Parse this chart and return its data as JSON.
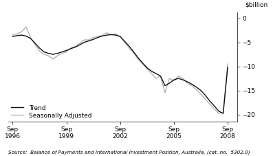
{
  "ylabel_right": "$billion",
  "source_text": "Source:  Balance of Payments and International Investment Position, Australia, (cat. no.  5302.0)",
  "xlim_start": 1996.5,
  "xlim_end": 2009.3,
  "ylim_bottom": -21.5,
  "ylim_top": 1.2,
  "yticks": [
    0,
    -5,
    -10,
    -15,
    -20
  ],
  "xtick_positions": [
    1996.75,
    1999.75,
    2002.75,
    2005.75,
    2008.75
  ],
  "xtick_labels": [
    "Sep\n1996",
    "Sep\n1999",
    "Sep\n2002",
    "Sep\n2005",
    "Sep\n2008"
  ],
  "trend_color": "#111111",
  "seasonal_color": "#aaaaaa",
  "trend_linewidth": 1.0,
  "seasonal_linewidth": 0.9,
  "legend_trend": "Trend",
  "legend_seasonal": "Seasonally Adjusted",
  "trend_data": [
    [
      1996.75,
      -3.8
    ],
    [
      1997.0,
      -3.6
    ],
    [
      1997.25,
      -3.5
    ],
    [
      1997.5,
      -3.7
    ],
    [
      1997.75,
      -4.2
    ],
    [
      1998.0,
      -5.2
    ],
    [
      1998.25,
      -6.2
    ],
    [
      1998.5,
      -7.0
    ],
    [
      1998.75,
      -7.3
    ],
    [
      1999.0,
      -7.5
    ],
    [
      1999.25,
      -7.3
    ],
    [
      1999.5,
      -7.0
    ],
    [
      1999.75,
      -6.7
    ],
    [
      2000.0,
      -6.3
    ],
    [
      2000.25,
      -6.0
    ],
    [
      2000.5,
      -5.5
    ],
    [
      2000.75,
      -5.0
    ],
    [
      2001.0,
      -4.7
    ],
    [
      2001.25,
      -4.4
    ],
    [
      2001.5,
      -4.0
    ],
    [
      2001.75,
      -3.7
    ],
    [
      2002.0,
      -3.5
    ],
    [
      2002.25,
      -3.4
    ],
    [
      2002.5,
      -3.5
    ],
    [
      2002.75,
      -3.8
    ],
    [
      2003.0,
      -4.8
    ],
    [
      2003.25,
      -5.8
    ],
    [
      2003.5,
      -7.0
    ],
    [
      2003.75,
      -8.2
    ],
    [
      2004.0,
      -9.3
    ],
    [
      2004.25,
      -10.3
    ],
    [
      2004.5,
      -11.0
    ],
    [
      2004.75,
      -11.5
    ],
    [
      2005.0,
      -12.0
    ],
    [
      2005.25,
      -14.0
    ],
    [
      2005.5,
      -13.5
    ],
    [
      2005.75,
      -12.8
    ],
    [
      2006.0,
      -12.5
    ],
    [
      2006.25,
      -12.8
    ],
    [
      2006.5,
      -13.2
    ],
    [
      2006.75,
      -13.7
    ],
    [
      2007.0,
      -14.3
    ],
    [
      2007.25,
      -15.0
    ],
    [
      2007.5,
      -16.0
    ],
    [
      2007.75,
      -17.2
    ],
    [
      2008.0,
      -18.2
    ],
    [
      2008.25,
      -19.3
    ],
    [
      2008.5,
      -19.8
    ],
    [
      2008.75,
      -10.2
    ]
  ],
  "seasonal_data": [
    [
      1996.75,
      -3.5
    ],
    [
      1997.0,
      -3.2
    ],
    [
      1997.25,
      -2.8
    ],
    [
      1997.5,
      -1.8
    ],
    [
      1997.75,
      -4.0
    ],
    [
      1998.0,
      -5.5
    ],
    [
      1998.25,
      -6.8
    ],
    [
      1998.5,
      -7.5
    ],
    [
      1998.75,
      -7.8
    ],
    [
      1999.0,
      -8.5
    ],
    [
      1999.25,
      -7.8
    ],
    [
      1999.5,
      -7.3
    ],
    [
      1999.75,
      -7.0
    ],
    [
      2000.0,
      -6.2
    ],
    [
      2000.25,
      -5.8
    ],
    [
      2000.5,
      -5.2
    ],
    [
      2000.75,
      -4.5
    ],
    [
      2001.0,
      -4.5
    ],
    [
      2001.25,
      -4.0
    ],
    [
      2001.5,
      -3.8
    ],
    [
      2001.75,
      -3.5
    ],
    [
      2002.0,
      -3.0
    ],
    [
      2002.25,
      -3.5
    ],
    [
      2002.5,
      -3.2
    ],
    [
      2002.75,
      -3.8
    ],
    [
      2003.0,
      -5.0
    ],
    [
      2003.25,
      -6.2
    ],
    [
      2003.5,
      -7.2
    ],
    [
      2003.75,
      -8.5
    ],
    [
      2004.0,
      -9.5
    ],
    [
      2004.25,
      -10.5
    ],
    [
      2004.5,
      -11.5
    ],
    [
      2004.75,
      -12.5
    ],
    [
      2005.0,
      -12.0
    ],
    [
      2005.25,
      -15.5
    ],
    [
      2005.5,
      -12.5
    ],
    [
      2005.75,
      -13.0
    ],
    [
      2006.0,
      -12.0
    ],
    [
      2006.25,
      -12.5
    ],
    [
      2006.5,
      -13.5
    ],
    [
      2006.75,
      -14.0
    ],
    [
      2007.0,
      -14.8
    ],
    [
      2007.25,
      -15.8
    ],
    [
      2007.5,
      -16.8
    ],
    [
      2007.75,
      -17.8
    ],
    [
      2008.0,
      -18.8
    ],
    [
      2008.25,
      -19.8
    ],
    [
      2008.5,
      -19.5
    ],
    [
      2008.75,
      -9.5
    ]
  ]
}
